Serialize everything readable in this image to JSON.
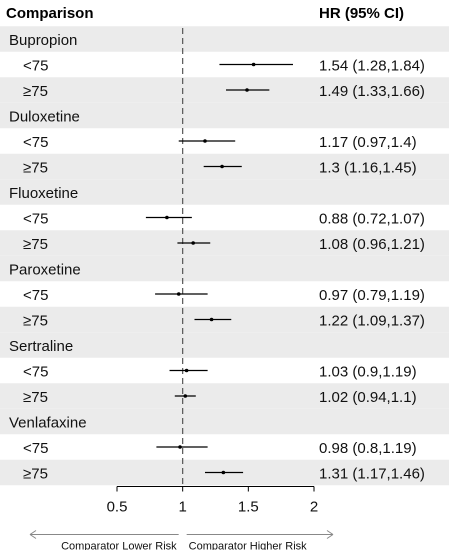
{
  "chart_data": {
    "type": "forest",
    "headers": {
      "comparison": "Comparison",
      "hr": "HR (95% CI)"
    },
    "groups": [
      {
        "name": "Bupropion",
        "rows": [
          {
            "label": "<75",
            "hr": 1.54,
            "lo": 1.28,
            "hi": 1.84,
            "text": "1.54 (1.28,1.84)"
          },
          {
            "label": "≥75",
            "hr": 1.49,
            "lo": 1.33,
            "hi": 1.66,
            "text": "1.49 (1.33,1.66)"
          }
        ]
      },
      {
        "name": "Duloxetine",
        "rows": [
          {
            "label": "<75",
            "hr": 1.17,
            "lo": 0.97,
            "hi": 1.4,
            "text": "1.17 (0.97,1.4)"
          },
          {
            "label": "≥75",
            "hr": 1.3,
            "lo": 1.16,
            "hi": 1.45,
            "text": "1.3 (1.16,1.45)"
          }
        ]
      },
      {
        "name": "Fluoxetine",
        "rows": [
          {
            "label": "<75",
            "hr": 0.88,
            "lo": 0.72,
            "hi": 1.07,
            "text": "0.88 (0.72,1.07)"
          },
          {
            "label": "≥75",
            "hr": 1.08,
            "lo": 0.96,
            "hi": 1.21,
            "text": "1.08 (0.96,1.21)"
          }
        ]
      },
      {
        "name": "Paroxetine",
        "rows": [
          {
            "label": "<75",
            "hr": 0.97,
            "lo": 0.79,
            "hi": 1.19,
            "text": "0.97 (0.79,1.19)"
          },
          {
            "label": "≥75",
            "hr": 1.22,
            "lo": 1.09,
            "hi": 1.37,
            "text": "1.22 (1.09,1.37)"
          }
        ]
      },
      {
        "name": "Sertraline",
        "rows": [
          {
            "label": "<75",
            "hr": 1.03,
            "lo": 0.9,
            "hi": 1.19,
            "text": "1.03 (0.9,1.19)"
          },
          {
            "label": "≥75",
            "hr": 1.02,
            "lo": 0.94,
            "hi": 1.1,
            "text": "1.02 (0.94,1.1)"
          }
        ]
      },
      {
        "name": "Venlafaxine",
        "rows": [
          {
            "label": "<75",
            "hr": 0.98,
            "lo": 0.8,
            "hi": 1.19,
            "text": "0.98 (0.8,1.19)"
          },
          {
            "label": "≥75",
            "hr": 1.31,
            "lo": 1.17,
            "hi": 1.46,
            "text": "1.31 (1.17,1.46)"
          }
        ]
      }
    ],
    "xticks": [
      0.5,
      1,
      1.5,
      2
    ],
    "xlim": [
      0.5,
      2
    ],
    "reference_line": 1,
    "arrow_labels": {
      "left": "Comparator Lower Risk",
      "right": "Comparator Higher Risk"
    },
    "colors": {
      "band": "#ebebeb",
      "line": "#000000",
      "reference": "#555555",
      "arrow": "#888888"
    }
  }
}
